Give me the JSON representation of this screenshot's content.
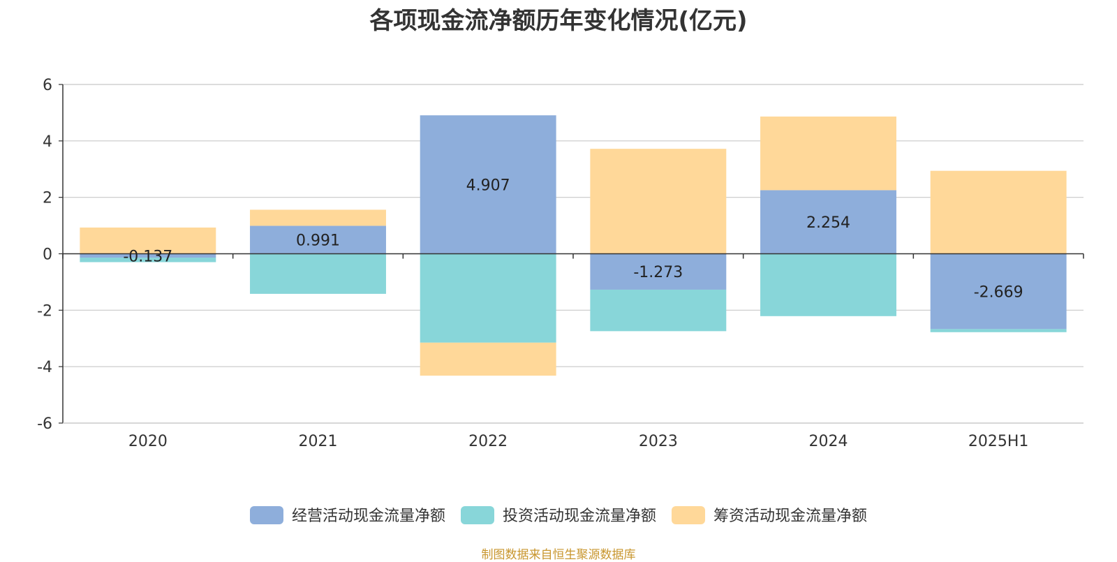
{
  "chart_data": {
    "type": "bar",
    "stacked": true,
    "title": "各项现金流净额历年变化情况(亿元)",
    "categories": [
      "2020",
      "2021",
      "2022",
      "2023",
      "2024",
      "2025H1"
    ],
    "series": [
      {
        "name": "经营活动现金流量净额",
        "color": "#8eaedb",
        "values": [
          -0.137,
          0.991,
          4.907,
          -1.273,
          2.254,
          -2.669
        ],
        "labels": [
          "-0.137",
          "0.991",
          "4.907",
          "-1.273",
          "2.254",
          "-2.669"
        ]
      },
      {
        "name": "投资活动现金流量净额",
        "color": "#88d6d9",
        "values": [
          -0.16,
          -1.42,
          -3.15,
          -1.47,
          -2.21,
          -0.11
        ]
      },
      {
        "name": "筹资活动现金流量净额",
        "color": "#ffd899",
        "values": [
          0.93,
          0.57,
          -1.17,
          3.72,
          2.61,
          2.94
        ]
      }
    ],
    "yticks": [
      -6,
      -4,
      -2,
      0,
      2,
      4,
      6
    ],
    "ylim": [
      -6,
      6
    ],
    "grid": true,
    "legend_position": "bottom-center",
    "source_note": "制图数据来自恒生聚源数据库"
  }
}
